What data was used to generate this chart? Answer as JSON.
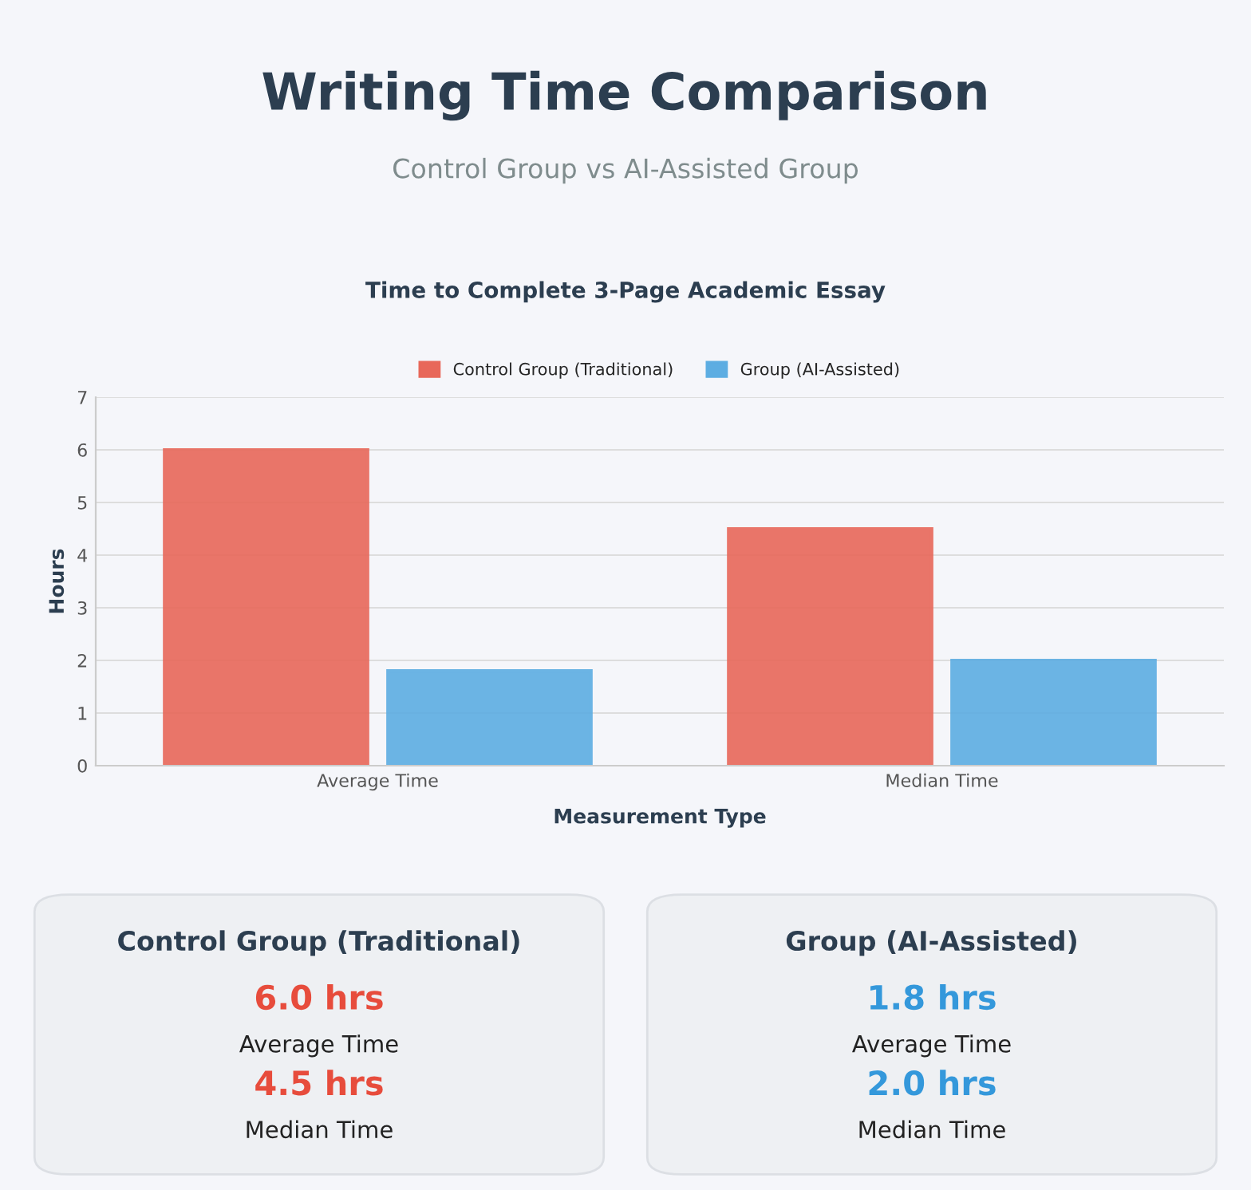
{
  "chart_data": [
    {
      "type": "bar",
      "title": "Writing Time Comparison",
      "subtitle": "Control Group vs AI-Assisted Group",
      "annotations": [
        "Time to Complete 3-Page Academic Essay"
      ],
      "categories": [
        "Average Time",
        "Median Time"
      ],
      "series": [
        {
          "name": "Control Group (Traditional)",
          "color": "#e8685a",
          "values": [
            6.0,
            4.5
          ]
        },
        {
          "name": "Group (AI-Assisted)",
          "color": "#5dade2",
          "values": [
            1.8,
            2.0
          ]
        }
      ],
      "xlabel": "Measurement Type",
      "ylabel": "Hours",
      "ylim": [
        0,
        7
      ],
      "yticks": [
        0,
        1,
        2,
        3,
        4,
        5,
        6,
        7
      ],
      "grid": "y",
      "legend": "top"
    },
    {
      "type": "other",
      "title": "Control Group (Traditional)",
      "color": "#e74c3c",
      "annotations": [
        "6.0 hrs",
        "Average Time",
        "4.5 hrs",
        "Median Time"
      ]
    },
    {
      "type": "other",
      "title": "Group (AI-Assisted)",
      "color": "#3498db",
      "annotations": [
        "1.8 hrs",
        "Average Time",
        "2.0 hrs",
        "Median Time"
      ]
    }
  ]
}
